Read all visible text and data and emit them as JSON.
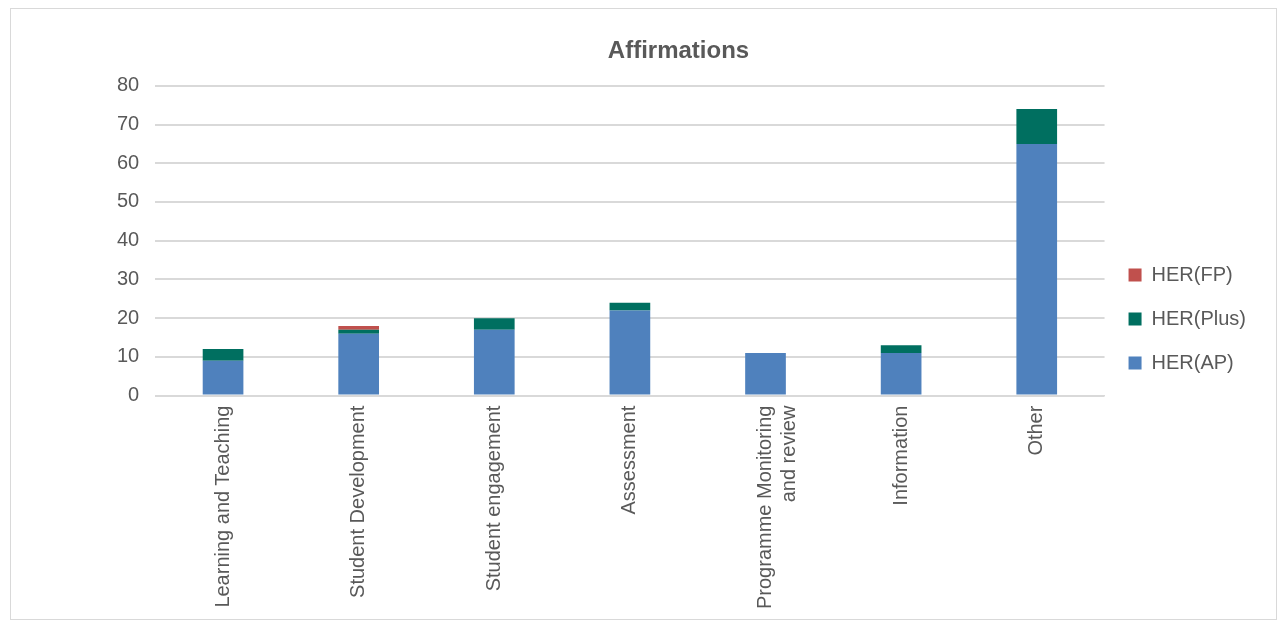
{
  "chart_data": {
    "type": "bar",
    "title": "Affirmations",
    "stacked": true,
    "categories": [
      "Learning and Teaching",
      "Student Development",
      "Student engagement",
      "Assessment",
      "Programme Monitoring and review",
      "Information",
      "Other"
    ],
    "series": [
      {
        "name": "HER(AP)",
        "color": "#4f81bd",
        "values": [
          9,
          16,
          17,
          22,
          11,
          11,
          65
        ]
      },
      {
        "name": "HER(Plus)",
        "color": "#006f60",
        "values": [
          3,
          1,
          3,
          2,
          0,
          2,
          9
        ]
      },
      {
        "name": "HER(FP)",
        "color": "#c0504d",
        "values": [
          0,
          1,
          0,
          0,
          0,
          0,
          0
        ]
      }
    ],
    "ylim": [
      0,
      80
    ],
    "yticks": [
      0,
      10,
      20,
      30,
      40,
      50,
      60,
      70,
      80
    ],
    "grid": "y",
    "legend": "right"
  }
}
